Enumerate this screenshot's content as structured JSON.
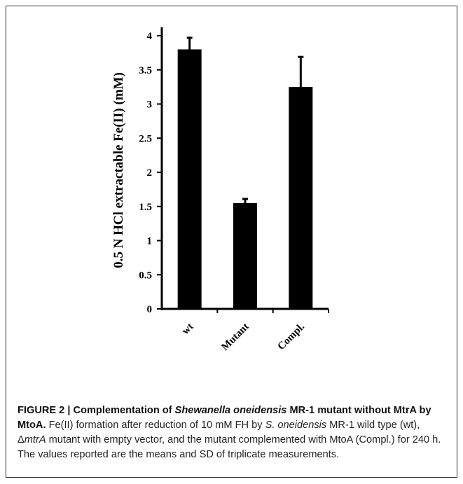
{
  "chart_data": {
    "type": "bar",
    "categories": [
      "wt",
      "Mutant",
      "Compl."
    ],
    "values": [
      3.8,
      1.55,
      3.25
    ],
    "errors": [
      0.17,
      0.06,
      0.44
    ],
    "title": "",
    "xlabel": "",
    "ylabel": "0.5 N HCl extractable Fe(II)  (mM)",
    "ylim": [
      0,
      4
    ],
    "yticks": [
      "0",
      "0.5",
      "1",
      "1.5",
      "2",
      "2.5",
      "3",
      "3.5",
      "4"
    ],
    "grid": false,
    "bar_color": "#000000"
  },
  "caption": {
    "label_prefix": "FIGURE 2 | Complementation of ",
    "label_italic": "Shewanella oneidensis",
    "label_rest": " MR-1 mutant without MtrA by MtoA.",
    "body_1": " Fe(II) formation after reduction of 10 mM FH by ",
    "body_italic_1": "S. oneidensis",
    "body_2": " MR-1 wild type (wt), Δ",
    "body_italic_2": "mtrA",
    "body_3": " mutant with empty vector, and the mutant complemented with MtoA (Compl.) for 240 h. The values reported are the means and SD of triplicate measurements."
  }
}
